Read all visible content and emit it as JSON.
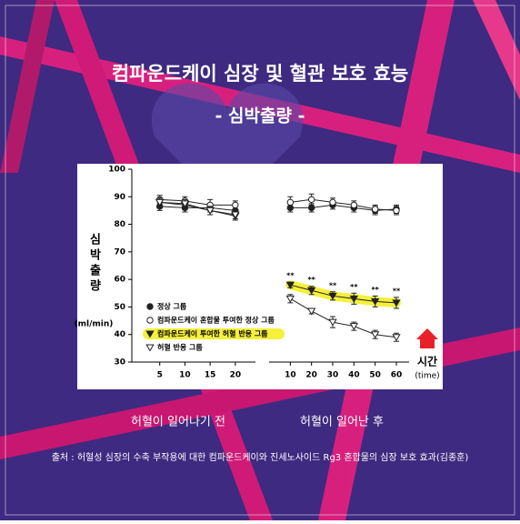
{
  "header": {
    "title": "컴파운드케이 심장 및 혈관 보호 효능",
    "subtitle": "- 심박출량 -"
  },
  "chart_data": {
    "type": "line",
    "y_label": "심박출량",
    "y_unit": "(ml/min)",
    "ylim": [
      30,
      100
    ],
    "yticks": [
      30,
      40,
      50,
      60,
      70,
      80,
      90,
      100
    ],
    "panels": [
      {
        "x": [
          5,
          10,
          15,
          20
        ],
        "xlim": [
          0,
          24
        ],
        "xticks": [
          5,
          10,
          15,
          20
        ],
        "period_label": "허혈이 일어나기 전"
      },
      {
        "x": [
          10,
          20,
          30,
          40,
          50,
          60
        ],
        "xlim": [
          0,
          66
        ],
        "xticks": [
          10,
          20,
          30,
          40,
          50,
          60
        ],
        "period_label": "허혈이 일어난 후"
      }
    ],
    "series": [
      {
        "name": "정상 그룹",
        "marker": "circle-filled",
        "color": "#222222",
        "values": [
          [
            86.5,
            86,
            86,
            85
          ],
          [
            86,
            86,
            87,
            86,
            85,
            85.5
          ]
        ],
        "errors": [
          [
            1.5,
            1.5,
            1.5,
            1.5
          ],
          [
            1.5,
            1.5,
            1.5,
            1.5,
            1.5,
            1.5
          ]
        ]
      },
      {
        "name": "컴파운드케이 혼합물 투여한 정상 그룹",
        "marker": "circle-open",
        "color": "#222222",
        "values": [
          [
            89,
            88.5,
            87,
            87
          ],
          [
            88,
            89,
            88,
            87,
            85.5,
            85
          ]
        ],
        "errors": [
          [
            1.5,
            1.5,
            2,
            1.5
          ],
          [
            2,
            2,
            1.5,
            1.5,
            1.5,
            1.5
          ]
        ]
      },
      {
        "name": "컴파운드케이 투여한 허혈 반응 그룹",
        "marker": "triangle-filled",
        "color": "#222222",
        "highlight": "#f5f03a",
        "values": [
          [
            88,
            87,
            85,
            83
          ],
          [
            58,
            56,
            54,
            53,
            52,
            51.5
          ]
        ],
        "errors": [
          [
            1.5,
            1.5,
            1.5,
            1.5
          ],
          [
            1,
            1.5,
            1.5,
            2,
            2,
            2
          ]
        ],
        "significance": [
          "**",
          "**",
          "**",
          "**",
          "**",
          "**"
        ]
      },
      {
        "name": "허혈 반응 그룹",
        "marker": "triangle-open",
        "color": "#222222",
        "values": [
          [
            88,
            87.5,
            85,
            83.5
          ],
          [
            53,
            48.5,
            44.5,
            43,
            40,
            39
          ]
        ],
        "errors": [
          [
            1.5,
            1.5,
            1.5,
            1.5
          ],
          [
            1.5,
            1,
            2,
            1.5,
            1.5,
            1.5
          ]
        ]
      }
    ],
    "time_label": "시간",
    "time_label_en": "(time)"
  },
  "footer": {
    "source": "출처 : 허혈성 심장의 수축 부작용에 대한 컴파운드케이와 진세노사이드 Rg3 혼합물의 심장 보호 효과(김종훈)"
  }
}
